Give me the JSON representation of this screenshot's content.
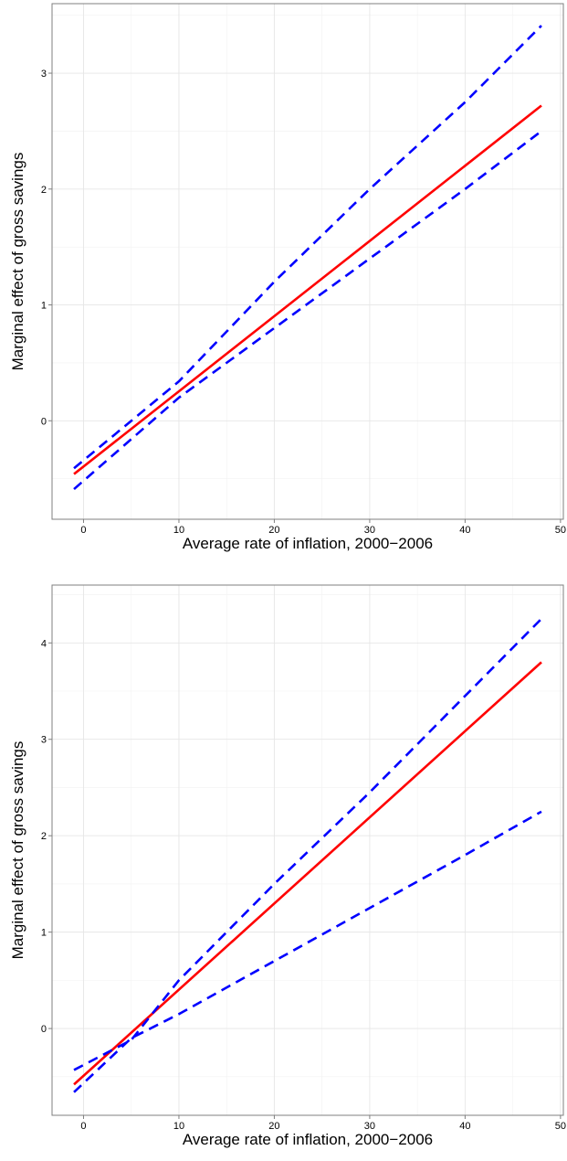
{
  "chart_data": [
    {
      "type": "line",
      "xlabel": "Average rate of inflation, 2000−2006",
      "ylabel": "Marginal effect of gross savings",
      "xlim": [
        -3.3,
        50.3
      ],
      "ylim": [
        -0.85,
        3.6
      ],
      "x_ticks": [
        0,
        10,
        20,
        30,
        40,
        50
      ],
      "y_ticks": [
        0,
        1,
        2,
        3
      ],
      "grid": true,
      "legend": "none",
      "series": [
        {
          "role": "estimate",
          "color": "#ff0000",
          "dash": "solid",
          "x": [
            -1,
            48
          ],
          "y": [
            -0.46,
            2.72
          ]
        },
        {
          "role": "upper",
          "color": "#0000ff",
          "dash": "dashed",
          "x": [
            -1,
            10,
            20,
            30,
            40,
            48
          ],
          "y": [
            -0.41,
            0.34,
            1.2,
            2.0,
            2.75,
            3.41
          ]
        },
        {
          "role": "lower",
          "color": "#0000ff",
          "dash": "dashed",
          "x": [
            -1,
            10,
            20,
            30,
            40,
            48
          ],
          "y": [
            -0.59,
            0.2,
            0.8,
            1.4,
            2.0,
            2.5
          ]
        }
      ]
    },
    {
      "type": "line",
      "xlabel": "Average rate of inflation, 2000−2006",
      "ylabel": "Marginal effect of gross savings",
      "xlim": [
        -3.3,
        50.3
      ],
      "ylim": [
        -0.9,
        4.6
      ],
      "x_ticks": [
        0,
        10,
        20,
        30,
        40,
        50
      ],
      "y_ticks": [
        0,
        1,
        2,
        3,
        4
      ],
      "grid": true,
      "legend": "none",
      "series": [
        {
          "role": "estimate",
          "color": "#ff0000",
          "dash": "solid",
          "x": [
            -1,
            48
          ],
          "y": [
            -0.58,
            3.8
          ]
        },
        {
          "role": "upper",
          "color": "#0000ff",
          "dash": "dashed",
          "x": [
            -1,
            5,
            10,
            20,
            30,
            40,
            48
          ],
          "y": [
            -0.43,
            -0.12,
            0.5,
            1.5,
            2.45,
            3.45,
            4.25
          ]
        },
        {
          "role": "lower",
          "color": "#0000ff",
          "dash": "dashed",
          "x": [
            -1,
            5,
            10,
            20,
            30,
            40,
            48
          ],
          "y": [
            -0.66,
            -0.1,
            0.15,
            0.7,
            1.25,
            1.8,
            2.25
          ]
        }
      ]
    }
  ]
}
